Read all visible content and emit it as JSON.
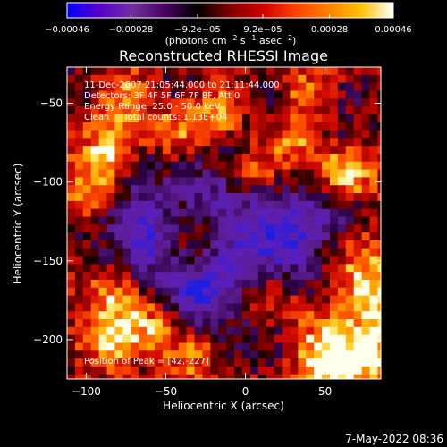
{
  "chart_data": {
    "type": "heatmap",
    "title": "Reconstructed RHESSI Image",
    "xlabel": "Heliocentric X (arcsec)",
    "ylabel": "Heliocentric Y (arcsec)",
    "xlim": [
      -112,
      85
    ],
    "ylim": [
      -225,
      -27
    ],
    "x_ticks": [
      -100,
      -50,
      0,
      50
    ],
    "x_tick_labels": [
      "−100",
      "−50",
      "0",
      "50"
    ],
    "y_ticks": [
      -50,
      -100,
      -150,
      -200
    ],
    "y_tick_labels": [
      "−50",
      "−100",
      "−150",
      "−200"
    ],
    "colorbar": {
      "range": [
        -0.00046,
        0.00046
      ],
      "ticks": [
        -0.00046,
        -0.00028,
        -9.2e-05,
        9.2e-05,
        0.00028,
        0.00046
      ],
      "tick_labels": [
        "−0.00046",
        "−0.00028",
        "−9.2e−05",
        "9.2e−05",
        "0.00028",
        "0.00046"
      ],
      "units_label": "(photons cm",
      "units_sup1": "−2",
      "units_mid": " s",
      "units_sup2": "−1",
      "units_end": " asec",
      "units_sup3": "−2",
      "units_close": ")",
      "colors": [
        "#0000ff",
        "#5a00c8",
        "#7030a0",
        "#4a0060",
        "#000000",
        "#800000",
        "#d00000",
        "#ff4000",
        "#ff8000",
        "#ffc000",
        "#ffffff"
      ]
    },
    "annotations": [
      "11-Dec-2007 21:05:44.000 to 21:11:44.000",
      "Detectors: 3F 4F 5F 6F 7F 8F, Att 0",
      "Energy Range: 25.0 - 50.0 keV",
      "Clean     Total counts: 1.13E+04"
    ],
    "peak_label": "Position of Peak = [42,-227]",
    "peak_position": [
      42,
      -227
    ],
    "bright_regions": [
      {
        "x": -85,
        "y": -78,
        "level": 0.9
      },
      {
        "x": -75,
        "y": -48,
        "level": 0.75
      },
      {
        "x": -42,
        "y": -68,
        "level": 0.75
      },
      {
        "x": -15,
        "y": -55,
        "level": 0.7
      },
      {
        "x": 5,
        "y": -95,
        "level": 0.65
      },
      {
        "x": 30,
        "y": -75,
        "level": 0.7
      },
      {
        "x": 62,
        "y": -95,
        "level": 0.95
      },
      {
        "x": 40,
        "y": -45,
        "level": 0.6
      },
      {
        "x": -95,
        "y": -105,
        "level": 0.65
      },
      {
        "x": -85,
        "y": -170,
        "level": 0.7
      },
      {
        "x": -85,
        "y": -200,
        "level": 0.9
      },
      {
        "x": -60,
        "y": -190,
        "level": 0.7
      },
      {
        "x": -35,
        "y": -210,
        "level": 0.6
      },
      {
        "x": 15,
        "y": -175,
        "level": 0.55
      },
      {
        "x": 48,
        "y": -190,
        "level": 0.6
      },
      {
        "x": 78,
        "y": -175,
        "level": 0.8
      },
      {
        "x": 50,
        "y": -215,
        "level": 0.95
      },
      {
        "x": 75,
        "y": -210,
        "level": 0.9
      },
      {
        "x": 70,
        "y": -150,
        "level": 0.6
      },
      {
        "x": -35,
        "y": -135,
        "level": 0.4
      }
    ],
    "dim_regions": [
      {
        "x": -60,
        "y": -140,
        "level": -0.55
      },
      {
        "x": -30,
        "y": -170,
        "level": -0.7
      },
      {
        "x": -5,
        "y": -150,
        "level": -0.5
      },
      {
        "x": 25,
        "y": -140,
        "level": -0.55
      },
      {
        "x": 45,
        "y": -120,
        "level": -0.4
      },
      {
        "x": -70,
        "y": -120,
        "level": -0.4
      },
      {
        "x": 10,
        "y": -120,
        "level": -0.45
      },
      {
        "x": -20,
        "y": -110,
        "level": -0.35
      }
    ]
  },
  "footer": {
    "timestamp": "7-May-2022 08:36"
  }
}
